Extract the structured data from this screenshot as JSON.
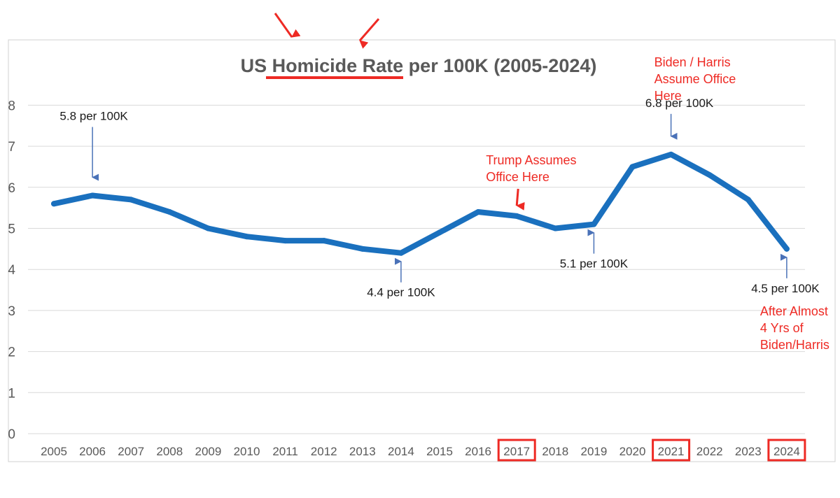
{
  "chart_data": {
    "type": "line",
    "title": "US Homicide Rate per 100K (2005-2024)",
    "title_emphasis": "Homicide Rate",
    "categories": [
      "2005",
      "2006",
      "2007",
      "2008",
      "2009",
      "2010",
      "2011",
      "2012",
      "2013",
      "2014",
      "2015",
      "2016",
      "2017",
      "2018",
      "2019",
      "2020",
      "2021",
      "2022",
      "2023",
      "2024"
    ],
    "series": [
      {
        "name": "US Homicide Rate per 100K",
        "values": [
          5.6,
          5.8,
          5.7,
          5.4,
          5.0,
          4.8,
          4.7,
          4.7,
          4.5,
          4.4,
          4.9,
          5.4,
          5.3,
          5.0,
          5.1,
          6.5,
          6.8,
          6.3,
          5.7,
          4.5
        ]
      }
    ],
    "ylim": [
      0,
      8
    ],
    "yticks": [
      0,
      1,
      2,
      3,
      4,
      5,
      6,
      7,
      8
    ],
    "grid": true,
    "xlabel": "",
    "ylabel": "",
    "highlighted_years": [
      "2017",
      "2021",
      "2024"
    ],
    "data_labels": [
      {
        "category": "2006",
        "text": "5.8 per 100K",
        "position": "above"
      },
      {
        "category": "2014",
        "text": "4.4 per 100K",
        "position": "below"
      },
      {
        "category": "2019",
        "text": "5.1 per 100K",
        "position": "below"
      },
      {
        "category": "2021",
        "text": "6.8 per 100K",
        "position": "above"
      },
      {
        "category": "2024",
        "text": "4.5 per 100K",
        "position": "below"
      }
    ],
    "annotations": [
      {
        "category": "2017",
        "lines": [
          "Trump Assumes",
          "Office Here"
        ],
        "position": "above"
      },
      {
        "category": "2021",
        "lines": [
          "Biden / Harris",
          "Assume Office",
          "Here"
        ],
        "position": "above"
      },
      {
        "category": "2024",
        "lines": [
          "After Almost",
          "4 Yrs of",
          "Biden/Harris"
        ],
        "position": "below"
      }
    ],
    "colors": {
      "line": "#1a70be",
      "pointer_arrow": "#4a72b8",
      "annotation": "#ee2a24",
      "gridline": "#d9d9d9",
      "tick_text": "#595959",
      "title_text": "#595959",
      "data_label_text": "#1a1a1a"
    }
  }
}
